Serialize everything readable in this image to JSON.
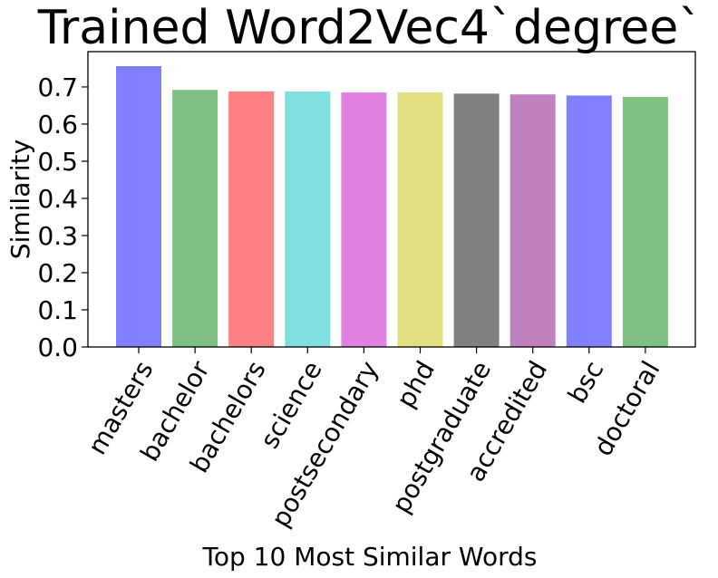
{
  "chart_data": {
    "type": "bar",
    "title": "Trained Word2Vec4`degree`",
    "xlabel": "Top 10 Most Similar Words",
    "ylabel": "Similarity",
    "categories": [
      "masters",
      "bachelor",
      "bachelors",
      "science",
      "postsecondary",
      "phd",
      "postgraduate",
      "accredited",
      "bsc",
      "doctoral"
    ],
    "values": [
      0.756,
      0.692,
      0.688,
      0.688,
      0.685,
      0.685,
      0.682,
      0.68,
      0.677,
      0.673
    ],
    "colors": [
      "#8080ff",
      "#80c080",
      "#ff8080",
      "#80e0e0",
      "#e080e0",
      "#e0e080",
      "#808080",
      "#c080c0",
      "#8080ff",
      "#80c080"
    ],
    "ylim": [
      0,
      0.795
    ],
    "yticks": [
      "0.0",
      "0.1",
      "0.2",
      "0.3",
      "0.4",
      "0.5",
      "0.6",
      "0.7"
    ],
    "grid": false,
    "legend": "none"
  }
}
